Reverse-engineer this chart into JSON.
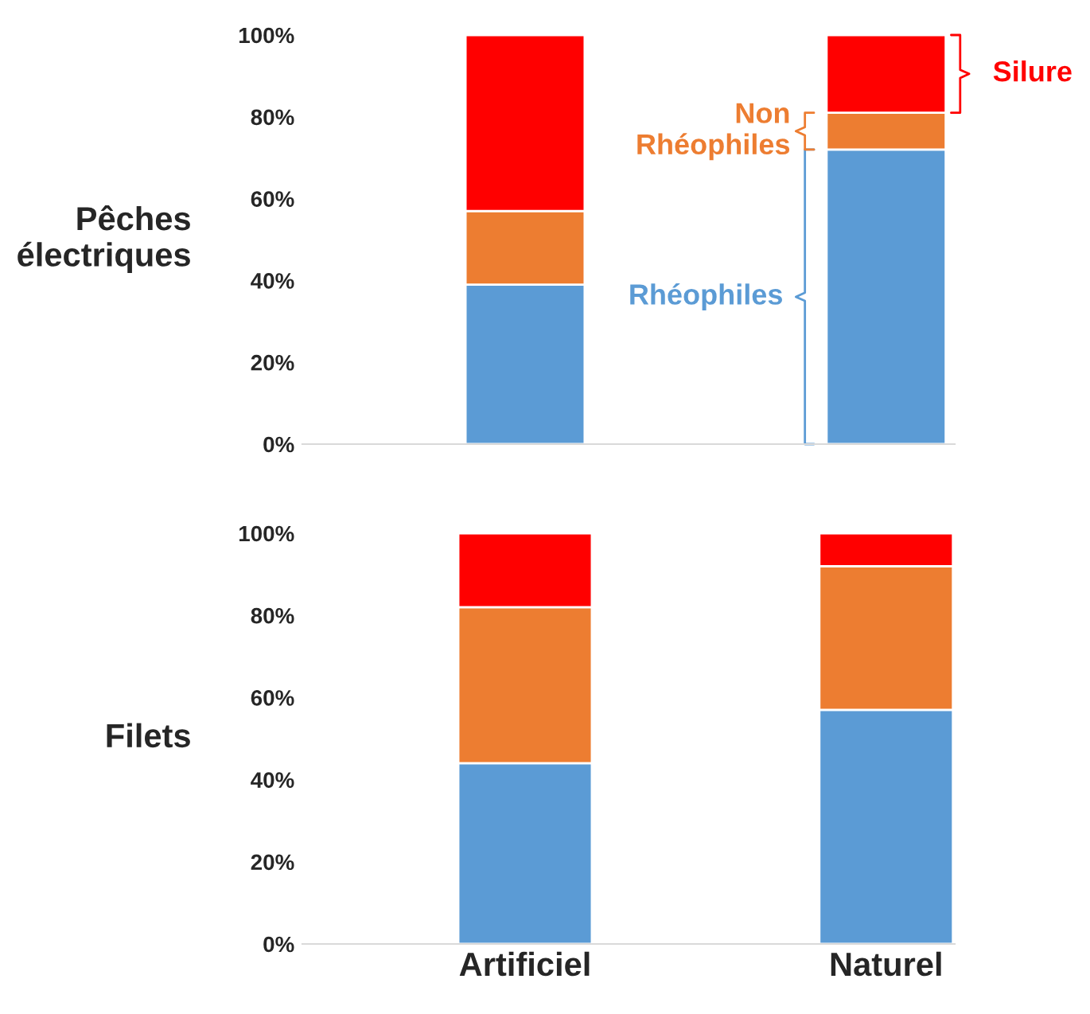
{
  "chart_data": [
    {
      "type": "bar",
      "stacked": true,
      "ylabel": "Pêches\nélectriques",
      "categories": [
        null,
        null
      ],
      "ylim": [
        0,
        100
      ],
      "yticks": [
        {
          "value": 0,
          "label": "0%"
        },
        {
          "value": 20,
          "label": "20%"
        },
        {
          "value": 40,
          "label": "40%"
        },
        {
          "value": 60,
          "label": "60%"
        },
        {
          "value": 80,
          "label": "80%"
        },
        {
          "value": 100,
          "label": "100%"
        }
      ],
      "tick_labels": "y",
      "grid": false,
      "legend": "right",
      "series": [
        {
          "name": "Rhéophiles",
          "color": "#5b9bd5",
          "values": [
            39,
            72
          ]
        },
        {
          "name": "Non\nRhéophiles",
          "color": "#ed7d31",
          "values": [
            18,
            9
          ]
        },
        {
          "name": "Silure",
          "color": "#ff0000",
          "values": [
            43,
            19
          ]
        }
      ]
    },
    {
      "type": "bar",
      "stacked": true,
      "ylabel": "Filets",
      "categories": [
        "Artificiel",
        "Naturel"
      ],
      "ylim": [
        0,
        100
      ],
      "yticks": [
        {
          "value": 0,
          "label": "0%"
        },
        {
          "value": 20,
          "label": "20%"
        },
        {
          "value": 40,
          "label": "40%"
        },
        {
          "value": 60,
          "label": "60%"
        },
        {
          "value": 80,
          "label": "80%"
        },
        {
          "value": 100,
          "label": "100%"
        }
      ],
      "grid": false,
      "series": [
        {
          "color": "#5b9bd5",
          "values": [
            44,
            57
          ]
        },
        {
          "color": "#ed7d31",
          "values": [
            38,
            35
          ]
        },
        {
          "color": "#ff0000",
          "values": [
            18,
            8
          ]
        }
      ]
    }
  ]
}
